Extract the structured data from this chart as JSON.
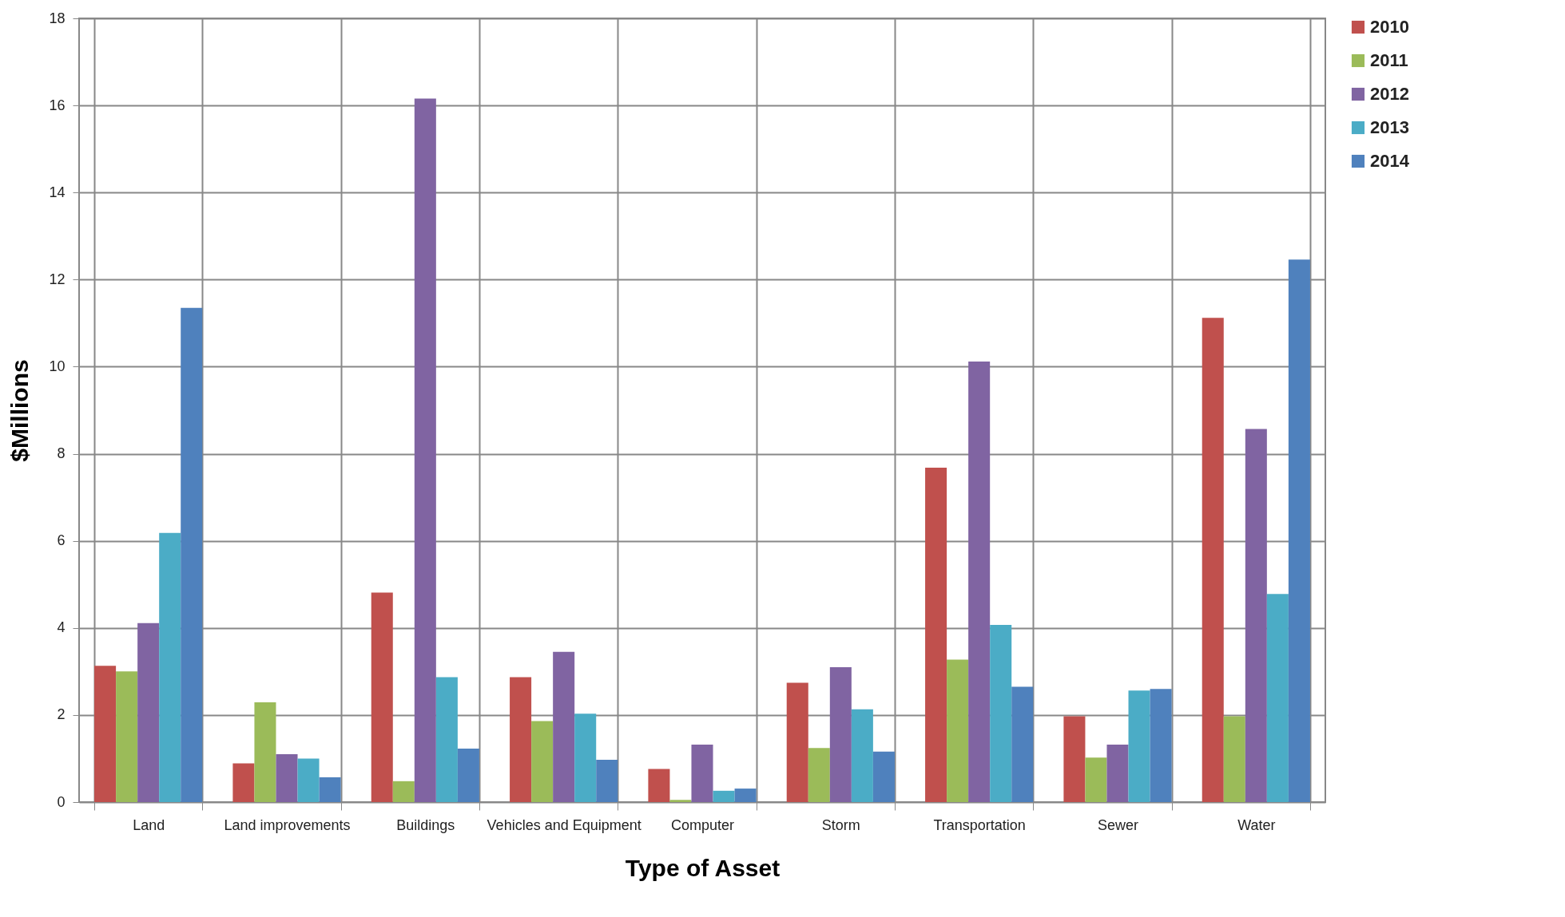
{
  "chart_data": {
    "type": "bar",
    "xlabel": "Type of Asset",
    "ylabel": "$Millions",
    "categories": [
      "Land",
      "Land improvements",
      "Buildings",
      "Vehicles and Equipment",
      "Computer",
      "Storm",
      "Transportation",
      "Sewer",
      "Water"
    ],
    "series": [
      {
        "name": "2010",
        "color": "#c0504d",
        "values": [
          3.13,
          0.89,
          4.81,
          2.87,
          0.76,
          2.74,
          7.68,
          1.97,
          11.12
        ]
      },
      {
        "name": "2011",
        "color": "#9bbb59",
        "values": [
          3.0,
          2.29,
          0.48,
          1.86,
          0.05,
          1.24,
          3.27,
          1.02,
          1.97
        ]
      },
      {
        "name": "2012",
        "color": "#8064a2",
        "values": [
          4.11,
          1.1,
          16.16,
          3.45,
          1.32,
          3.1,
          10.12,
          1.32,
          8.57
        ]
      },
      {
        "name": "2013",
        "color": "#4bacc6",
        "values": [
          6.18,
          1.0,
          2.87,
          2.03,
          0.26,
          2.13,
          4.07,
          2.56,
          4.78
        ]
      },
      {
        "name": "2014",
        "color": "#4f81bd",
        "values": [
          11.35,
          0.57,
          1.23,
          0.97,
          0.31,
          1.16,
          2.65,
          2.6,
          12.46
        ]
      }
    ],
    "ylim": [
      0,
      18
    ],
    "yticks": [
      0,
      2,
      4,
      6,
      8,
      10,
      12,
      14,
      16,
      18
    ],
    "grid": true,
    "legend": "right"
  }
}
